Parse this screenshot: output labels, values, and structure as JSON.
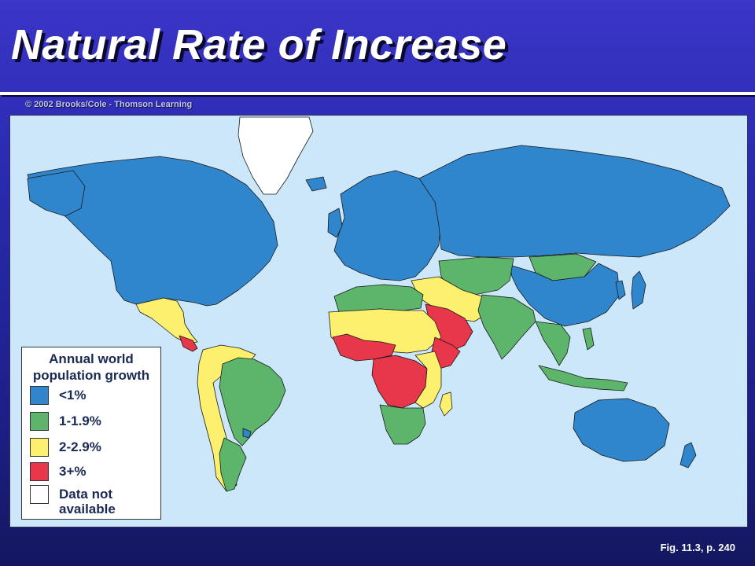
{
  "title": "Natural Rate of Increase",
  "copyright": "© 2002 Brooks/Cole - Thomson Learning",
  "figure_ref": "Fig. 11.3, p. 240",
  "colors": {
    "ocean": "#cde7fa",
    "lt1": "#2f86cc",
    "g1_1_9": "#5cb56a",
    "g2_2_9": "#fdf06e",
    "g3plus": "#e8364a",
    "na": "#ffffff"
  },
  "legend": {
    "title_line1": "Annual world",
    "title_line2": "population growth",
    "items": [
      {
        "label": "<1%",
        "color": "#2f86cc"
      },
      {
        "label": "1-1.9%",
        "color": "#5cb56a"
      },
      {
        "label": "2-2.9%",
        "color": "#fdf06e"
      },
      {
        "label": "3+%",
        "color": "#e8364a"
      },
      {
        "label": "Data not available",
        "color": "#ffffff"
      }
    ]
  }
}
